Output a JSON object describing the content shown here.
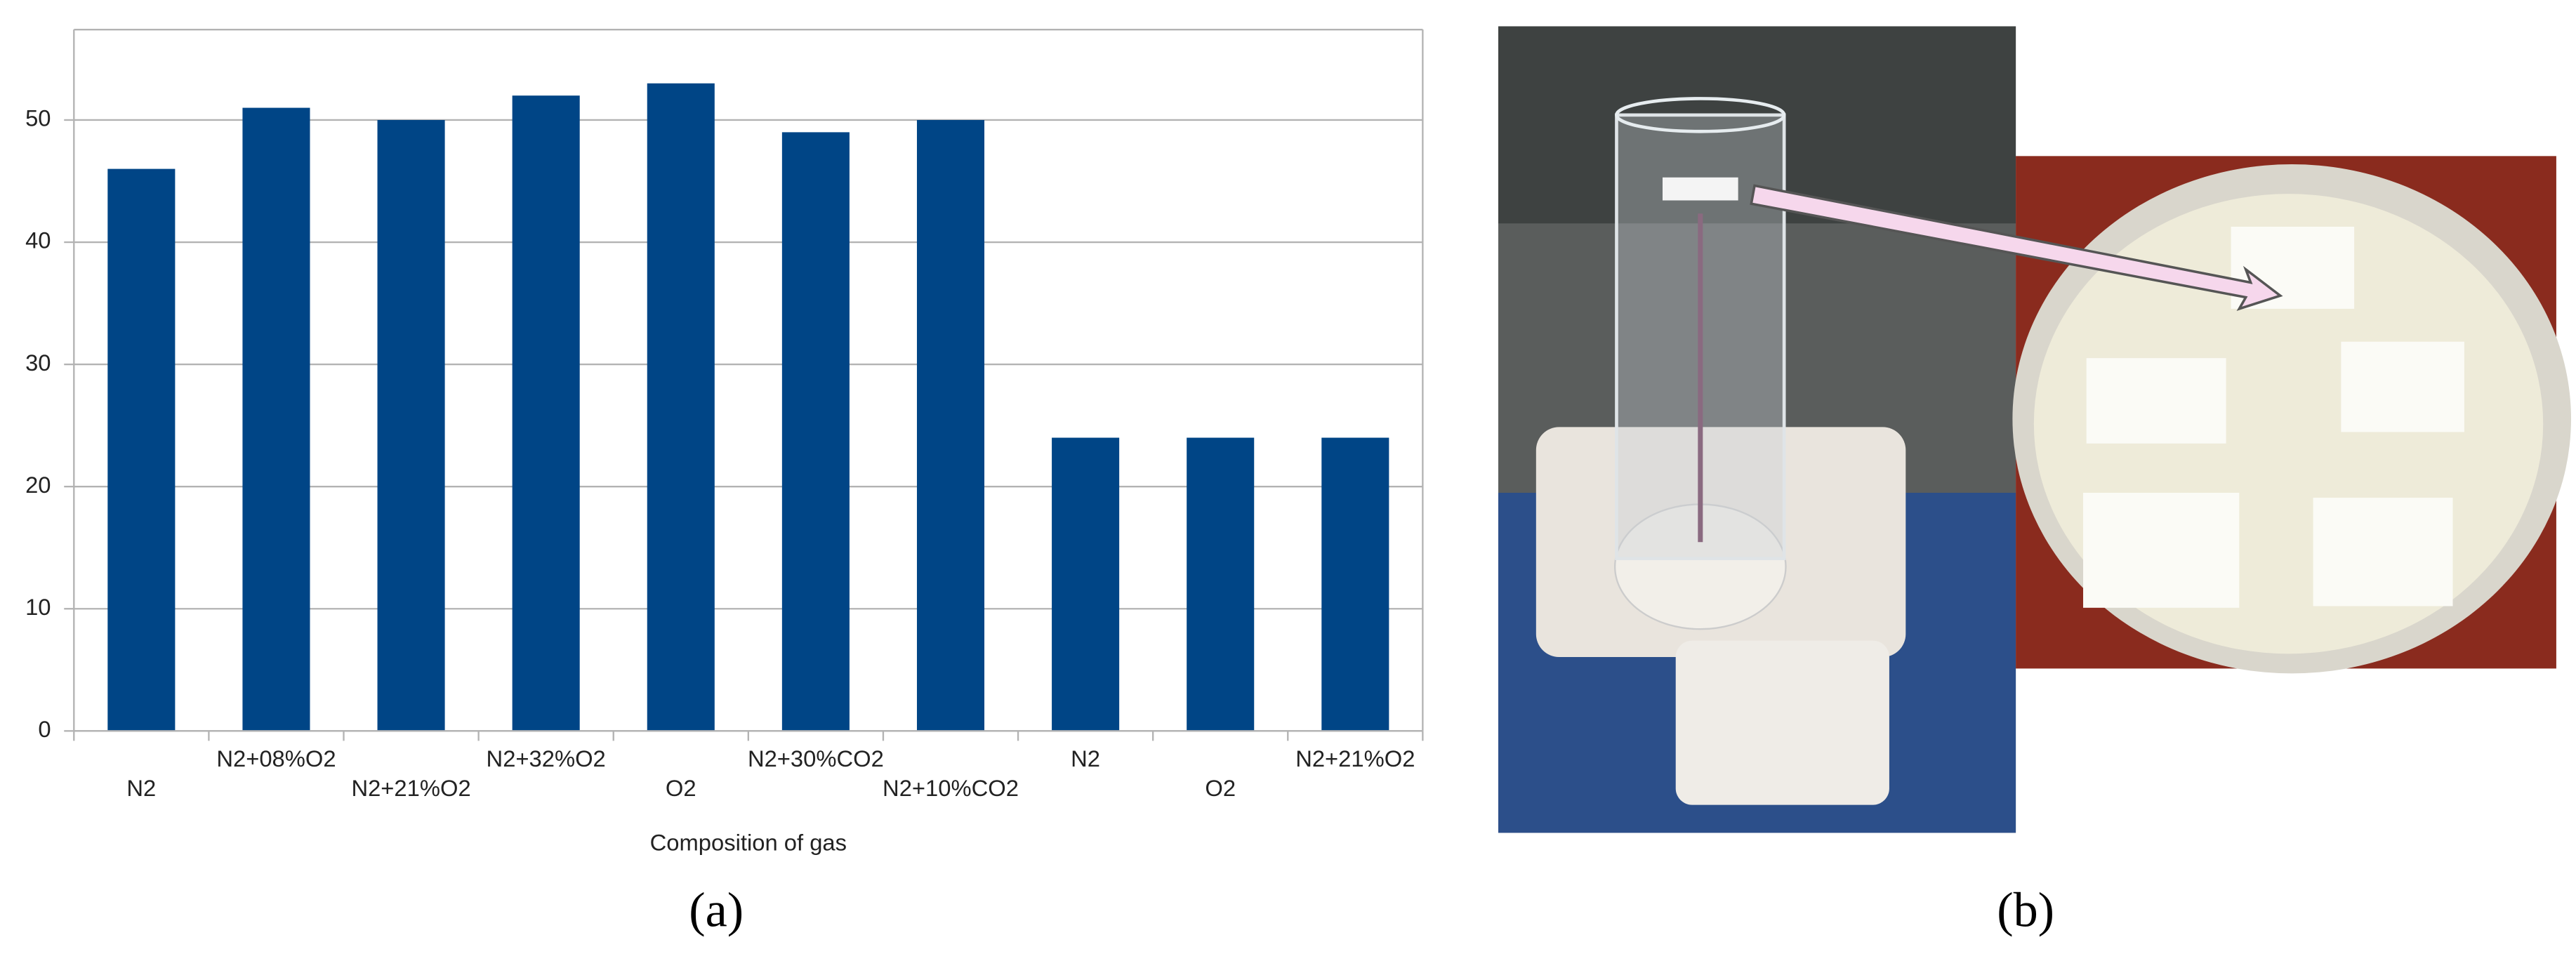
{
  "chart_data": {
    "type": "bar",
    "x_label": "Composition of gas",
    "categories": [
      "N2",
      "N2+08%O2",
      "N2+21%O2",
      "N2+32%O2",
      "O2",
      "N2+30%CO2",
      "N2+10%CO2",
      "N2",
      "O2",
      "N2+21%O2"
    ],
    "values": [
      46,
      51,
      50,
      52,
      53,
      49,
      50,
      24,
      24,
      24
    ],
    "color": "#004586",
    "ylim": [
      0,
      57.4
    ],
    "yticks": [
      0,
      10,
      20,
      30,
      40,
      50
    ],
    "grid": true
  },
  "panel_labels": [
    "(a)",
    "(b)"
  ]
}
